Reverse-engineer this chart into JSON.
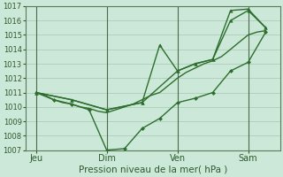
{
  "xlabel": "Pression niveau de la mer( hPa )",
  "background_color": "#cce8d8",
  "grid_color": "#a8c8b0",
  "line_color": "#2d6e2d",
  "ylim": [
    1007,
    1017
  ],
  "yticks": [
    1007,
    1008,
    1009,
    1010,
    1011,
    1012,
    1013,
    1014,
    1015,
    1016,
    1017
  ],
  "day_labels": [
    "Jeu",
    "Dim",
    "Ven",
    "Sam"
  ],
  "day_positions": [
    0.0,
    0.333,
    0.667,
    1.0
  ],
  "xlim": [
    -0.05,
    1.15
  ],
  "series1_x": [
    0.0,
    0.042,
    0.083,
    0.125,
    0.167,
    0.208,
    0.25,
    0.292,
    0.333,
    0.375,
    0.417,
    0.458,
    0.5,
    0.542,
    0.583,
    0.625,
    0.667,
    0.708,
    0.75,
    0.792,
    0.833,
    0.875,
    0.917,
    0.958,
    1.0,
    1.042,
    1.083
  ],
  "series1_y": [
    1011.0,
    1010.8,
    1010.5,
    1010.3,
    1010.2,
    1010.0,
    1009.9,
    1009.7,
    1009.6,
    1009.8,
    1010.0,
    1010.2,
    1010.5,
    1010.8,
    1011.0,
    1011.5,
    1012.0,
    1012.4,
    1012.7,
    1013.0,
    1013.2,
    1013.5,
    1014.0,
    1014.5,
    1015.0,
    1015.2,
    1015.3
  ],
  "series2_x": [
    0.0,
    0.083,
    0.167,
    0.25,
    0.333,
    0.417,
    0.5,
    0.583,
    0.667,
    0.75,
    0.833,
    0.917,
    1.0,
    1.083
  ],
  "series2_y": [
    1011.0,
    1010.5,
    1010.2,
    1009.8,
    1007.0,
    1007.1,
    1008.5,
    1009.2,
    1010.3,
    1010.6,
    1011.0,
    1012.5,
    1013.1,
    1015.2
  ],
  "series3_x": [
    0.0,
    0.167,
    0.333,
    0.5,
    0.667,
    0.75,
    0.833,
    0.917,
    1.0,
    1.083
  ],
  "series3_y": [
    1011.0,
    1010.5,
    1009.8,
    1010.3,
    1012.5,
    1013.0,
    1013.3,
    1016.7,
    1016.8,
    1015.5
  ],
  "series4_x": [
    0.0,
    0.167,
    0.333,
    0.5,
    0.583,
    0.667,
    0.75,
    0.833,
    0.917,
    1.0,
    1.083
  ],
  "series4_y": [
    1011.0,
    1010.5,
    1009.8,
    1010.3,
    1014.3,
    1012.5,
    1013.0,
    1013.3,
    1016.0,
    1016.7,
    1015.5
  ]
}
